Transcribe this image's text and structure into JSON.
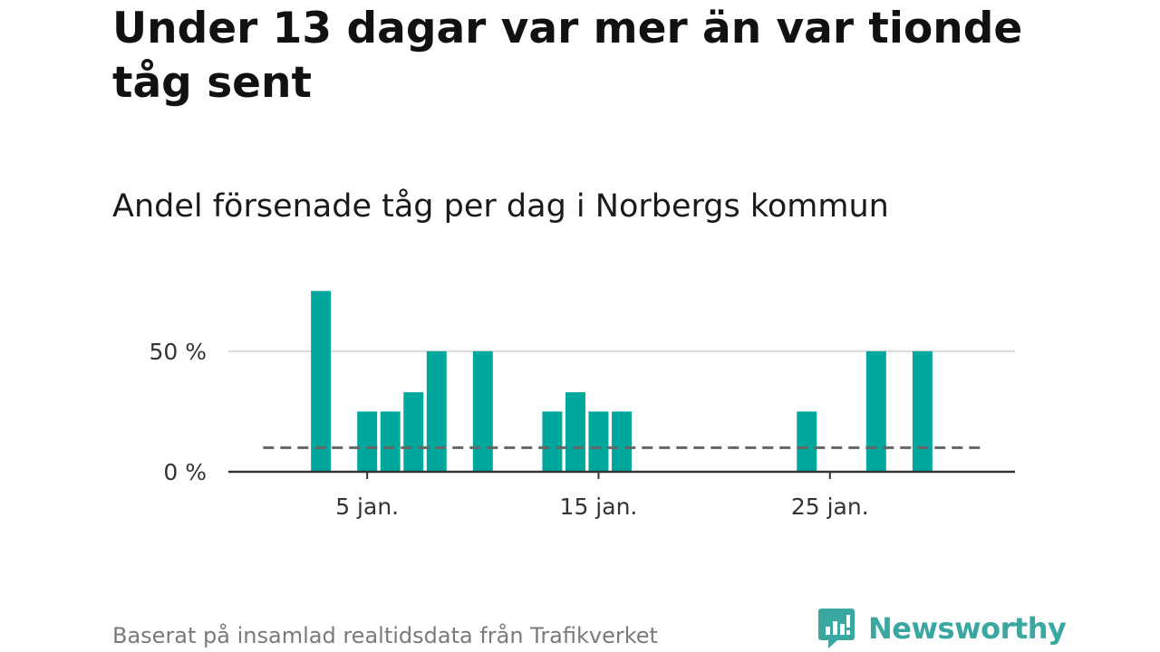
{
  "title": "Under 13 dagar var mer än var tionde tåg sent",
  "subtitle": "Andel försenade tåg per dag i Norbergs kommun",
  "source": "Baserat på insamlad realtidsdata från Trafikverket",
  "brand": {
    "name": "Newsworthy",
    "icon": "newsworthy-logo-icon",
    "color": "#3aa8a0"
  },
  "colors": {
    "bar": "#00a79d",
    "reference_line": "#666666",
    "grid": "#d9d9d9",
    "axis": "#333333"
  },
  "chart_data": {
    "type": "bar",
    "x_unit": "day of January",
    "x": [
      3,
      5,
      6,
      7,
      8,
      10,
      13,
      14,
      15,
      16,
      24,
      27,
      29
    ],
    "values": [
      75,
      25,
      25,
      33,
      50,
      50,
      25,
      33,
      25,
      25,
      25,
      50,
      50
    ],
    "x_range": [
      -1,
      33
    ],
    "ylim": [
      0,
      80
    ],
    "reference_line": {
      "value": 10,
      "style": "dashed"
    },
    "y_ticks": [
      {
        "value": 0,
        "label": "0 %"
      },
      {
        "value": 50,
        "label": "50 %"
      }
    ],
    "x_ticks": [
      {
        "value": 5,
        "label": "5 jan."
      },
      {
        "value": 15,
        "label": "15 jan."
      },
      {
        "value": 25,
        "label": "25 jan."
      }
    ],
    "grid": "horizontal"
  }
}
